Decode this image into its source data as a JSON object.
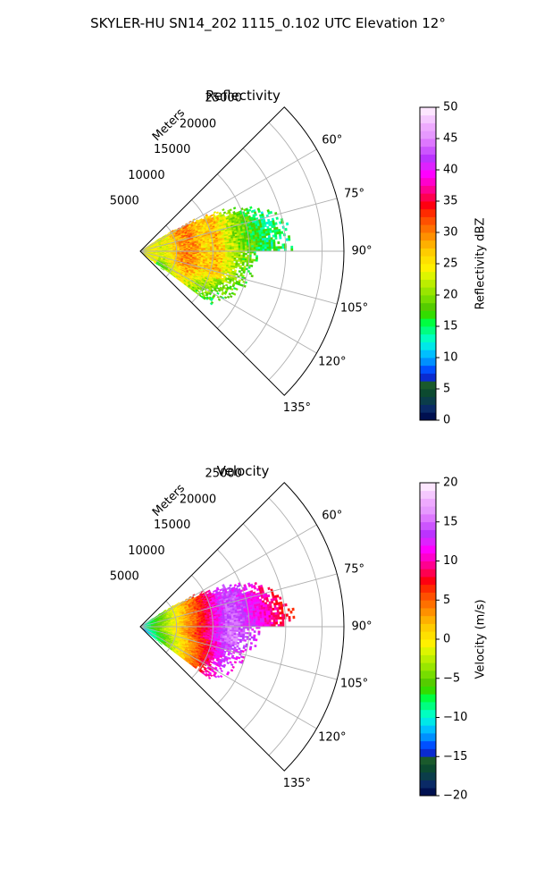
{
  "figure": {
    "title": "SKYLER-HU  SN14_202  1115_0.102 UTC Elevation 12°"
  },
  "chart_data": [
    {
      "type": "heatmap",
      "subtype": "polar-sector",
      "title": "Reflectivity",
      "radial_label": "Meters",
      "radial_ticks": [
        5000,
        10000,
        15000,
        20000,
        25000
      ],
      "radial_tick_labels": [
        "5000",
        "10000",
        "15000",
        "20000",
        "25000"
      ],
      "r_max": 28000,
      "theta_range_deg": [
        45,
        135
      ],
      "angle_ticks": [
        60,
        75,
        90,
        105,
        120,
        135
      ],
      "angle_tick_labels": [
        "60°",
        "75°",
        "90°",
        "105°",
        "120°",
        "135°"
      ],
      "grid": true,
      "colorbar": {
        "label": "Reflectivity dBZ",
        "range": [
          0,
          50
        ],
        "ticks": [
          0,
          5,
          10,
          15,
          20,
          25,
          30,
          35,
          40,
          45,
          50
        ],
        "tick_labels": [
          "0",
          "5",
          "10",
          "15",
          "20",
          "25",
          "30",
          "35",
          "40",
          "45",
          "50"
        ],
        "colors": [
          "#001050",
          "#0a2a66",
          "#0b3d4a",
          "#0c4a30",
          "#1a5a2c",
          "#0a2bd0",
          "#0050ff",
          "#0090ff",
          "#00bfff",
          "#00e8e8",
          "#00ffc0",
          "#00ff80",
          "#00ff40",
          "#33dd00",
          "#55cc00",
          "#77dd00",
          "#99e600",
          "#bbee00",
          "#ddf500",
          "#fff000",
          "#ffe000",
          "#ffcc00",
          "#ffb000",
          "#ff9000",
          "#ff7000",
          "#ff5000",
          "#ff2a00",
          "#ff0010",
          "#ff0050",
          "#ff0090",
          "#ff00cc",
          "#ff00ff",
          "#dd22ff",
          "#bb33ff",
          "#cc55ff",
          "#dd77ff",
          "#e699ff",
          "#eeaaff",
          "#f5c8ff",
          "#fde6ff"
        ]
      }
    },
    {
      "type": "heatmap",
      "subtype": "polar-sector",
      "title": "Velocity",
      "radial_label": "Meters",
      "radial_ticks": [
        5000,
        10000,
        15000,
        20000,
        25000
      ],
      "radial_tick_labels": [
        "5000",
        "10000",
        "15000",
        "20000",
        "25000"
      ],
      "r_max": 28000,
      "theta_range_deg": [
        45,
        135
      ],
      "angle_ticks": [
        60,
        75,
        90,
        105,
        120,
        135
      ],
      "angle_tick_labels": [
        "60°",
        "75°",
        "90°",
        "105°",
        "120°",
        "135°"
      ],
      "grid": true,
      "colorbar": {
        "label": "Velocity (m/s)",
        "range": [
          -20,
          20
        ],
        "ticks": [
          -20,
          -15,
          -10,
          -5,
          0,
          5,
          10,
          15,
          20
        ],
        "tick_labels": [
          "−20",
          "−15",
          "−10",
          "−5",
          "0",
          "5",
          "10",
          "15",
          "20"
        ],
        "colors": [
          "#001050",
          "#0a2a66",
          "#0b3d4a",
          "#0c4a30",
          "#1a5a2c",
          "#0a2bd0",
          "#0050ff",
          "#0090ff",
          "#00bfff",
          "#00e8e8",
          "#00ffc0",
          "#00ff80",
          "#00ff40",
          "#33dd00",
          "#55cc00",
          "#77dd00",
          "#99e600",
          "#bbee00",
          "#ddf500",
          "#fff000",
          "#ffe000",
          "#ffcc00",
          "#ffb000",
          "#ff9000",
          "#ff7000",
          "#ff5000",
          "#ff2a00",
          "#ff0010",
          "#ff0050",
          "#ff0090",
          "#ff00cc",
          "#ff00ff",
          "#dd22ff",
          "#bb33ff",
          "#cc55ff",
          "#dd77ff",
          "#e699ff",
          "#eeaaff",
          "#f5c8ff",
          "#fde6ff"
        ]
      }
    }
  ]
}
